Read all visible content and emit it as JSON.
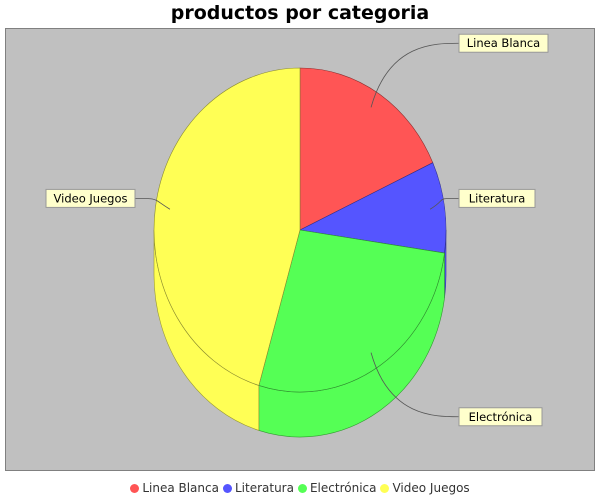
{
  "chart_data": {
    "type": "pie",
    "title": "productos por categoria",
    "slices": [
      {
        "label": "Linea Blanca",
        "value": 2,
        "color": "#ff5555"
      },
      {
        "label": "Literatura",
        "value": 1,
        "color": "#5555ff"
      },
      {
        "label": "Electrónica",
        "value": 3,
        "color": "#55ff55"
      },
      {
        "label": "Video Juegos",
        "value": 5,
        "color": "#ffff55"
      }
    ],
    "style": "3d",
    "plot_background": "#c0c0c0",
    "legend_position": "bottom"
  }
}
